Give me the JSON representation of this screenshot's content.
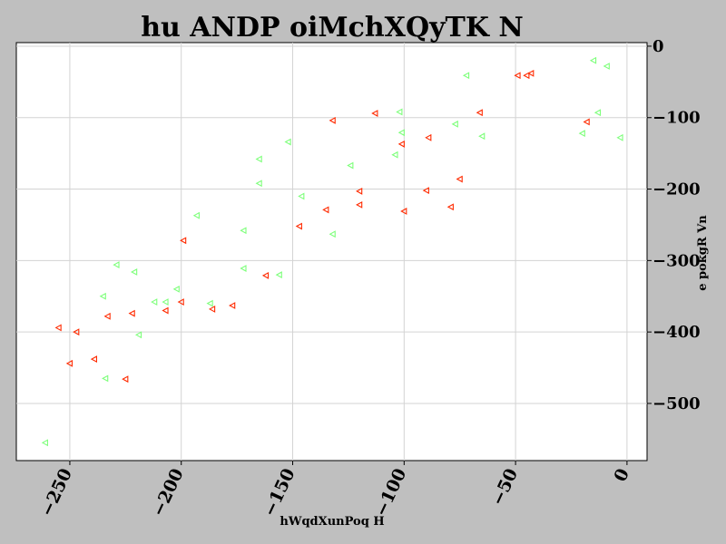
{
  "chart_data": {
    "type": "scatter",
    "title": "hu ANDP oiMchXQyTK  N",
    "xlabel": "hWqdXunPoq H",
    "ylabel": "e pokgR Vn",
    "xlim": [
      -274,
      9
    ],
    "ylim": [
      -580,
      5
    ],
    "xticks": [
      -250,
      -200,
      -150,
      -100,
      -50,
      0
    ],
    "yticks": [
      0,
      -100,
      -200,
      -300,
      -400,
      -500
    ],
    "x_tick_labels": [
      "−250",
      "−200",
      "−150",
      "−100",
      "−50",
      "0"
    ],
    "y_tick_labels": [
      "0",
      "−100",
      "−200",
      "−300",
      "−400",
      "−500"
    ],
    "grid": true,
    "marker": "triangle-left",
    "series": [
      {
        "color": "#ff2a00",
        "points": [
          [
            -255,
            -394
          ],
          [
            -250,
            -444
          ],
          [
            -247,
            -400
          ],
          [
            -239,
            -438
          ],
          [
            -233,
            -378
          ],
          [
            -225,
            -466
          ],
          [
            -222,
            -374
          ],
          [
            -207,
            -370
          ],
          [
            -200,
            -358
          ],
          [
            -199,
            -272
          ],
          [
            -186,
            -368
          ],
          [
            -177,
            -363
          ],
          [
            -162,
            -321
          ],
          [
            -147,
            -252
          ],
          [
            -135,
            -229
          ],
          [
            -132,
            -104
          ],
          [
            -120,
            -203
          ],
          [
            -120,
            -222
          ],
          [
            -113,
            -94
          ],
          [
            -101,
            -137
          ],
          [
            -100,
            -231
          ],
          [
            -90,
            -202
          ],
          [
            -89,
            -128
          ],
          [
            -79,
            -225
          ],
          [
            -75,
            -186
          ],
          [
            -66,
            -93
          ],
          [
            -49,
            -41
          ],
          [
            -45,
            -41
          ],
          [
            -43,
            -38
          ],
          [
            -18,
            -106
          ]
        ]
      },
      {
        "color": "#7dff7a",
        "points": [
          [
            -261,
            -555
          ],
          [
            -235,
            -350
          ],
          [
            -234,
            -465
          ],
          [
            -229,
            -306
          ],
          [
            -221,
            -316
          ],
          [
            -219,
            -404
          ],
          [
            -212,
            -358
          ],
          [
            -207,
            -358
          ],
          [
            -202,
            -340
          ],
          [
            -193,
            -237
          ],
          [
            -187,
            -360
          ],
          [
            -172,
            -258
          ],
          [
            -172,
            -311
          ],
          [
            -165,
            -158
          ],
          [
            -165,
            -192
          ],
          [
            -156,
            -320
          ],
          [
            -152,
            -134
          ],
          [
            -146,
            -210
          ],
          [
            -132,
            -263
          ],
          [
            -124,
            -167
          ],
          [
            -104,
            -152
          ],
          [
            -102,
            -92
          ],
          [
            -101,
            -121
          ],
          [
            -77,
            -109
          ],
          [
            -72,
            -41
          ],
          [
            -65,
            -126
          ],
          [
            -20,
            -122
          ],
          [
            -15,
            -20
          ],
          [
            -13,
            -93
          ],
          [
            -9,
            -28
          ],
          [
            -3,
            -128
          ]
        ]
      }
    ]
  }
}
